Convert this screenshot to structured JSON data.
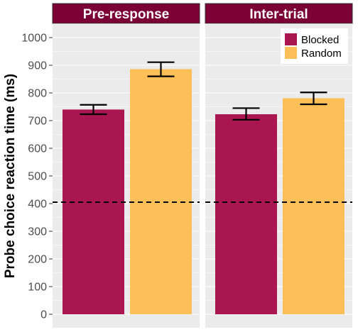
{
  "chart_data": {
    "type": "bar",
    "ylabel": "Probe choice reaction time (ms)",
    "xlabel": "",
    "ylim": [
      0,
      1050
    ],
    "yticks": [
      0,
      100,
      200,
      300,
      400,
      500,
      600,
      700,
      800,
      900,
      1000
    ],
    "reference_line": {
      "y": 405,
      "style": "dashed",
      "color": "#000000"
    },
    "legend": {
      "position": "top-right",
      "entries": [
        "Blocked",
        "Random"
      ]
    },
    "grid": true,
    "facets": [
      {
        "label": "Pre-response",
        "bars": [
          {
            "series": "Blocked",
            "value": 740,
            "err_low": 723,
            "err_high": 757
          },
          {
            "series": "Random",
            "value": 886,
            "err_low": 860,
            "err_high": 911
          }
        ]
      },
      {
        "label": "Inter-trial",
        "bars": [
          {
            "series": "Blocked",
            "value": 723,
            "err_low": 703,
            "err_high": 745
          },
          {
            "series": "Random",
            "value": 781,
            "err_low": 759,
            "err_high": 802
          }
        ]
      }
    ],
    "series": [
      {
        "name": "Blocked",
        "color": "#AA1650"
      },
      {
        "name": "Random",
        "color": "#FDBF58"
      }
    ]
  },
  "colors": {
    "panel_bg": "#EBEBEB",
    "strip_bg": "#7B0036",
    "strip_text": "#FFFFFF",
    "grid": "#FFFFFF",
    "tick_text": "#4D4D4D"
  }
}
